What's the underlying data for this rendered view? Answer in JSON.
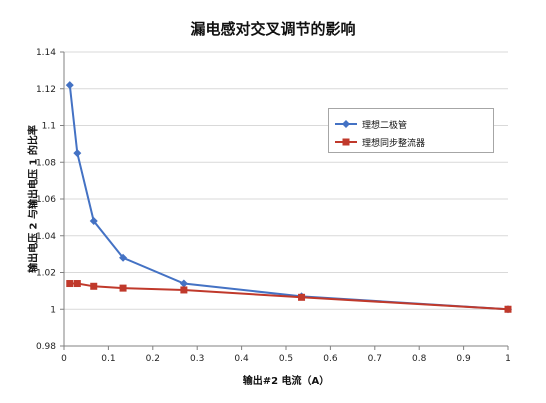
{
  "chart_data": {
    "type": "line",
    "title": "漏电感对交叉调节的影响",
    "xlabel": "输出#2 电流（A）",
    "ylabel": "输出电压 2 与输出电压 1 的比率",
    "xlim": [
      0,
      1
    ],
    "ylim": [
      0.98,
      1.14
    ],
    "x_ticks": [
      "0",
      "0.1",
      "0.2",
      "0.3",
      "0.4",
      "0.5",
      "0.6",
      "0.7",
      "0.8",
      "0.9",
      "1"
    ],
    "y_ticks": [
      "0.98",
      "1",
      "1.02",
      "1.04",
      "1.06",
      "1.08",
      "1.1",
      "1.12",
      "1.14"
    ],
    "grid": "horizontal",
    "legend_position": "right",
    "series": [
      {
        "name": "理想二极管",
        "color": "#4472c4",
        "marker": "diamond",
        "x": [
          0.013,
          0.03,
          0.067,
          0.133,
          0.27,
          0.535,
          1.0
        ],
        "y": [
          1.122,
          1.085,
          1.048,
          1.028,
          1.014,
          1.007,
          1.0
        ]
      },
      {
        "name": "理想同步整流器",
        "color": "#c0392b",
        "marker": "square",
        "x": [
          0.013,
          0.03,
          0.067,
          0.133,
          0.27,
          0.535,
          1.0
        ],
        "y": [
          1.014,
          1.014,
          1.0125,
          1.0115,
          1.0105,
          1.0065,
          1.0
        ]
      }
    ]
  }
}
